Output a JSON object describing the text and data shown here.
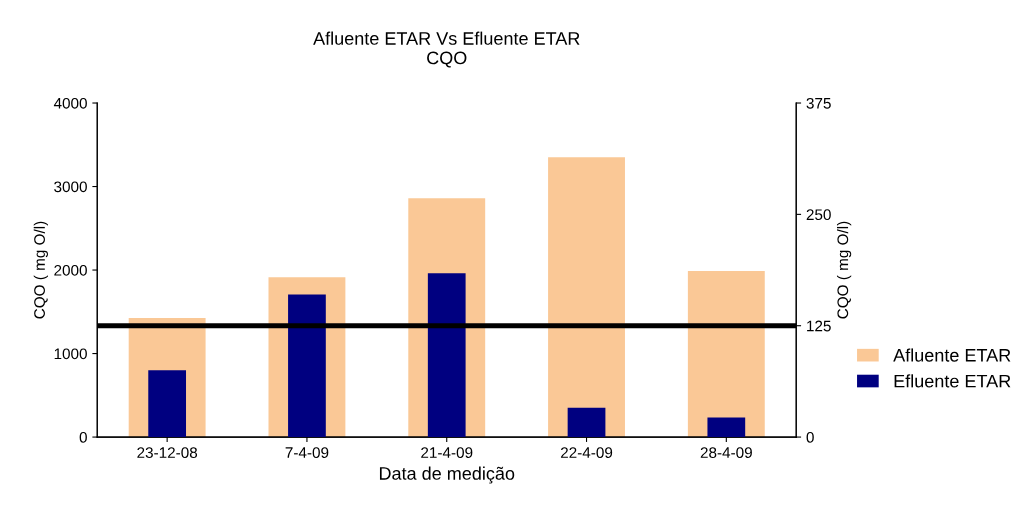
{
  "chart_data": {
    "type": "bar",
    "title": "Afluente ETAR Vs Efluente ETAR\nCQO",
    "xlabel": "Data de medição",
    "ylabel": "CQO ( mg O/l)",
    "y2label": "CQO ( mg O/l)",
    "categories": [
      "23-12-08",
      "7-4-09",
      "21-4-09",
      "22-4-09",
      "28-4-09"
    ],
    "series": [
      {
        "name": "Afluente ETAR",
        "color": "#fac896",
        "values": [
          1425,
          1915,
          2860,
          3350,
          1990
        ]
      },
      {
        "name": "Efluente ETAR",
        "color": "#000080",
        "values": [
          75,
          160,
          184,
          33,
          22
        ],
        "axis": "y2"
      }
    ],
    "ylim": [
      0,
      4000
    ],
    "yticks": [
      0,
      1000,
      2000,
      3000,
      4000
    ],
    "y2lim": [
      0,
      375
    ],
    "y2ticks": [
      0,
      125,
      250,
      375
    ],
    "ref_lines": [
      {
        "axis": "y2",
        "value": 125,
        "color": "#000000"
      }
    ],
    "grid": false,
    "legend": "right"
  }
}
